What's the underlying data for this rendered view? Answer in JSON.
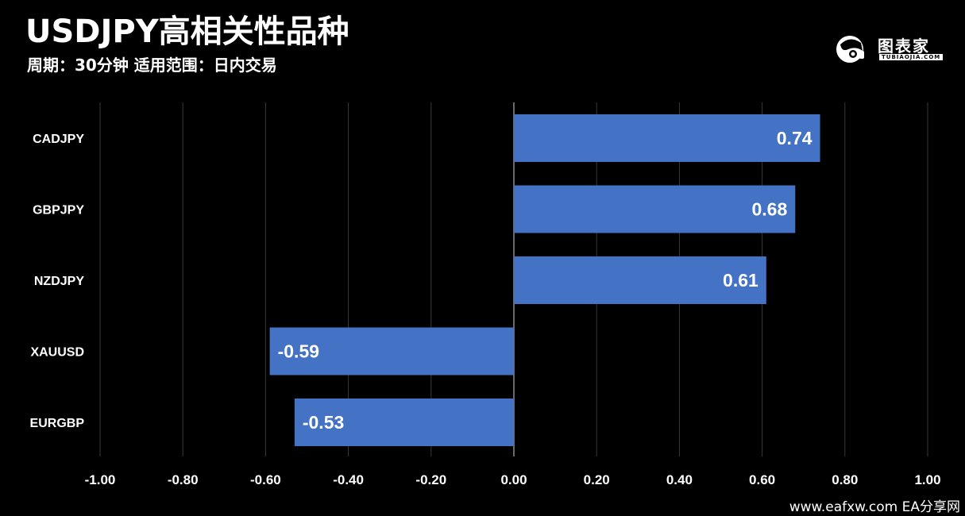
{
  "header": {
    "title": "USDJPY高相关性品种",
    "subtitle": "周期：30分钟  适用范围：日内交易"
  },
  "brand": {
    "name": "图表家",
    "sub": "TUBIAOJIA.COM",
    "icon": "robot-head-logo"
  },
  "watermark": "www.eafxw.com   EA分享网",
  "colors": {
    "bar": "#4472C4",
    "background": "#000000",
    "grid": "#3a3a3a",
    "zero_line": "#8c8c8c"
  },
  "chart_data": {
    "type": "bar",
    "orientation": "horizontal",
    "categories": [
      "CADJPY",
      "GBPJPY",
      "NZDJPY",
      "XAUUSD",
      "EURGBP"
    ],
    "values": [
      0.74,
      0.68,
      0.61,
      -0.59,
      -0.53
    ],
    "value_labels": [
      "0.74",
      "0.68",
      "0.61",
      "-0.59",
      "-0.53"
    ],
    "xlim": [
      -1.0,
      1.0
    ],
    "xticks": [
      -1.0,
      -0.8,
      -0.6,
      -0.4,
      -0.2,
      0.0,
      0.2,
      0.4,
      0.6,
      0.8,
      1.0
    ],
    "xtick_labels": [
      "-1.00",
      "-0.80",
      "-0.60",
      "-0.40",
      "-0.20",
      "0.00",
      "0.20",
      "0.40",
      "0.60",
      "0.80",
      "1.00"
    ],
    "grid": "vertical",
    "legend": "none"
  }
}
